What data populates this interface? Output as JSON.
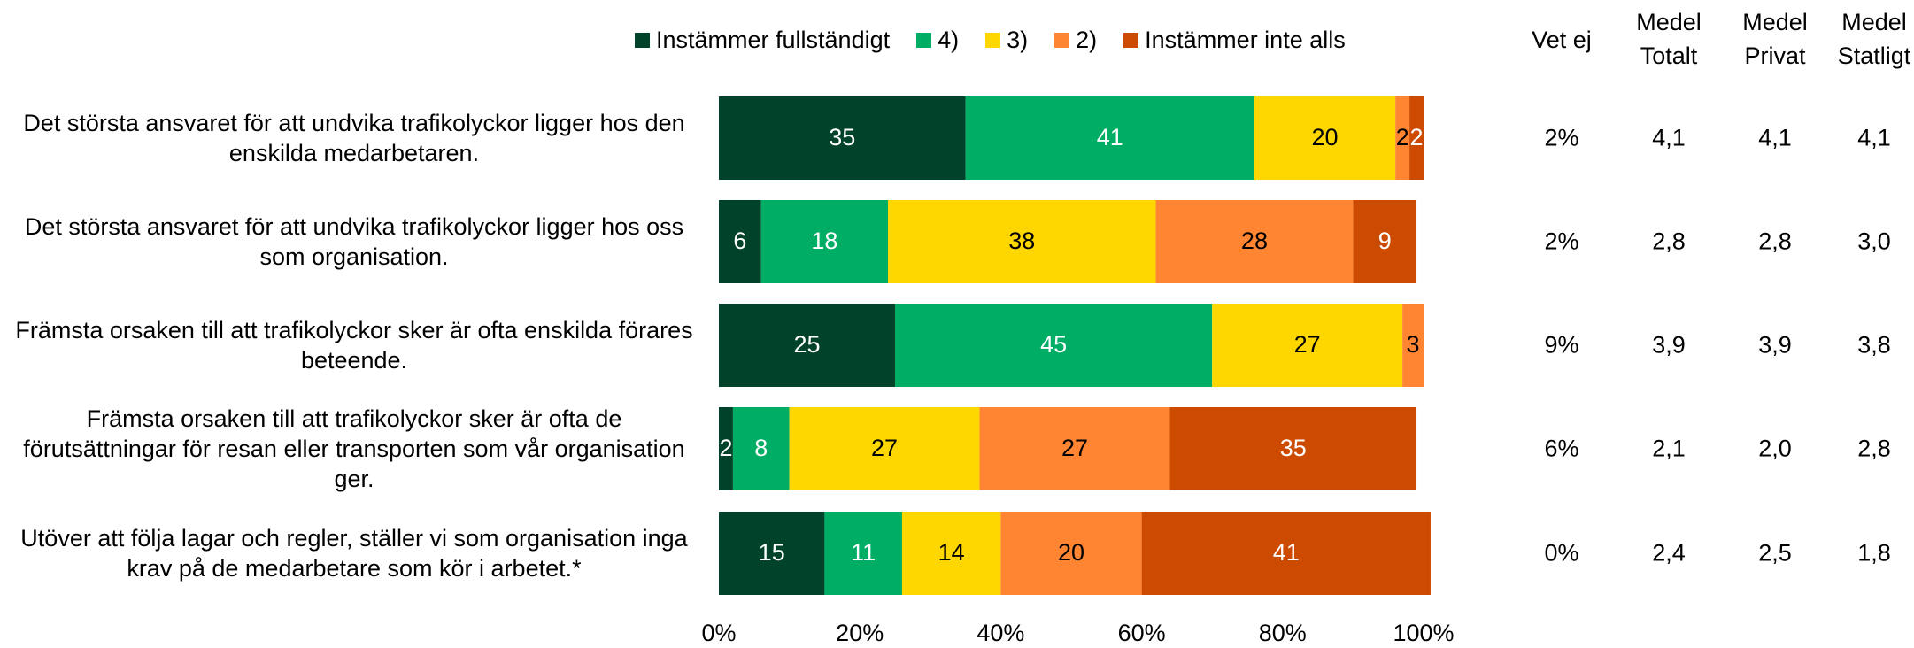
{
  "chart_data": {
    "type": "stacked_bar_horizontal",
    "categories": [
      "Det största ansvaret för att undvika trafikolyckor ligger hos den enskilda medarbetaren.",
      "Det största ansvaret för att undvika trafikolyckor ligger hos oss som organisation.",
      "Främsta orsaken till att trafikolyckor sker är ofta enskilda förares beteende.",
      "Främsta orsaken till att trafikolyckor sker är ofta de förutsättningar för resan eller transporten som vår organisation ger.",
      "Utöver att följa lagar och regler, ställer vi som organisation inga krav på de medarbetare som kör i arbetet.*"
    ],
    "series": [
      {
        "name": "Instämmer fullständigt",
        "color": "#00432a",
        "label_color": "#ffffff",
        "values": [
          35,
          6,
          25,
          2,
          15
        ]
      },
      {
        "name": "4)",
        "color": "#00ad65",
        "label_color": "#ffffff",
        "values": [
          41,
          18,
          45,
          8,
          11
        ]
      },
      {
        "name": "3)",
        "color": "#ffd700",
        "label_color": "#000000",
        "values": [
          20,
          38,
          27,
          27,
          14
        ]
      },
      {
        "name": "2)",
        "color": "#ff8533",
        "label_color": "#000000",
        "values": [
          2,
          28,
          3,
          27,
          20
        ]
      },
      {
        "name": "Instämmer inte alls",
        "color": "#cc4b00",
        "label_color": "#ffffff",
        "values": [
          2,
          9,
          null,
          35,
          41
        ]
      }
    ],
    "xlim": [
      0,
      100
    ],
    "xticks": [
      {
        "value": 0,
        "label": "0%"
      },
      {
        "value": 20,
        "label": "20%"
      },
      {
        "value": 40,
        "label": "40%"
      },
      {
        "value": 60,
        "label": "60%"
      },
      {
        "value": 80,
        "label": "80%"
      },
      {
        "value": 100,
        "label": "100%"
      }
    ],
    "legend": "top",
    "columns": [
      {
        "header": "Vet ej",
        "values": [
          2,
          2,
          9,
          6,
          0
        ],
        "value_labels": [
          "2%",
          "2%",
          "9%",
          "6%",
          "0%"
        ]
      },
      {
        "header": "Medel Totalt",
        "values": [
          4.1,
          2.8,
          3.9,
          2.1,
          2.4
        ],
        "value_labels": [
          "4,1",
          "2,8",
          "3,9",
          "2,1",
          "2,4"
        ]
      },
      {
        "header": "Medel Privat",
        "values": [
          4.1,
          2.8,
          3.9,
          2.0,
          2.5
        ],
        "value_labels": [
          "4,1",
          "2,8",
          "3,9",
          "2,0",
          "2,5"
        ]
      },
      {
        "header": "Medel Statligt",
        "values": [
          4.1,
          3.0,
          3.8,
          2.8,
          1.8
        ],
        "value_labels": [
          "4,1",
          "3,0",
          "3,8",
          "2,8",
          "1,8"
        ]
      }
    ]
  }
}
